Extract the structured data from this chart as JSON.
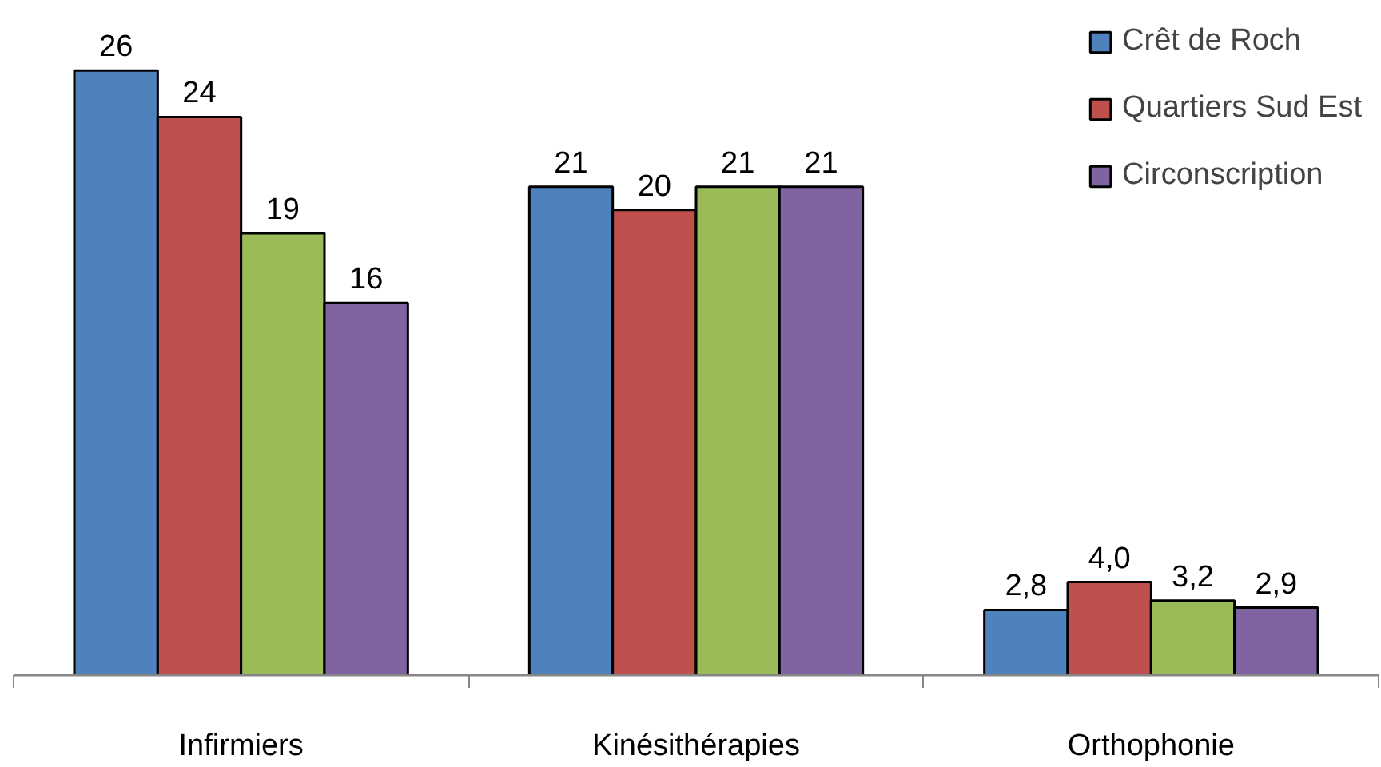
{
  "chart_data": {
    "type": "bar",
    "categories": [
      "Infirmiers",
      "Kinésithérapies",
      "Orthophonie"
    ],
    "series": [
      {
        "name": "Crêt de Roch",
        "color": "#4f81bd",
        "values": [
          26,
          21,
          2.8
        ],
        "value_labels": [
          "26",
          "21",
          "2,8"
        ]
      },
      {
        "name": "Quartiers Sud Est",
        "color": "#c0504d",
        "values": [
          24,
          20,
          4.0
        ],
        "value_labels": [
          "24",
          "20",
          "4,0"
        ]
      },
      {
        "color": "#9bbb59",
        "values": [
          19,
          21,
          3.2
        ],
        "value_labels": [
          "19",
          "21",
          "3,2"
        ]
      },
      {
        "name": "Circonscription",
        "color": "#8064a2",
        "values": [
          16,
          21,
          2.9
        ],
        "value_labels": [
          "16",
          "21",
          "2,9"
        ]
      }
    ],
    "legend": "top right"
  }
}
